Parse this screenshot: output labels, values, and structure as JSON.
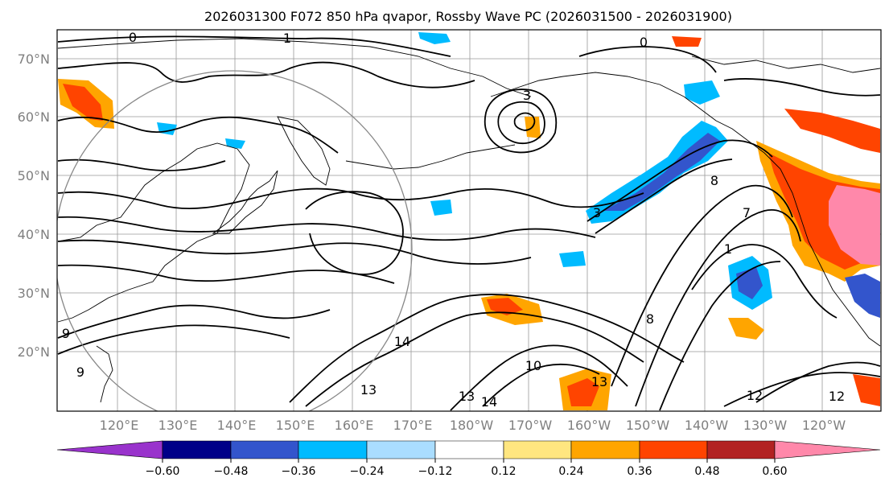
{
  "title": "2026031300 F072 850 hPa qvapor, Rossby Wave PC (2026031500 - 2026031900)",
  "latitude_labels": [
    "70°N",
    "60°N",
    "50°N",
    "40°N",
    "30°N",
    "20°N"
  ],
  "longitude_labels": [
    "120°E",
    "130°E",
    "140°E",
    "150°E",
    "160°E",
    "170°E",
    "180°W",
    "170°W",
    "160°W",
    "150°W",
    "140°W",
    "130°W",
    "120°W"
  ],
  "colorbar": {
    "colors": [
      "#9933cc",
      "#000088",
      "#3355cc",
      "#00bbff",
      "#aaddff",
      "#ffffff",
      "#ffe680",
      "#ffa500",
      "#ff4400",
      "#b22222",
      "#ff88aa"
    ],
    "tick_labels": [
      "−0.60",
      "−0.48",
      "−0.36",
      "−0.24",
      "−0.12",
      "0.12",
      "0.24",
      "0.36",
      "0.48",
      "0.60"
    ]
  },
  "contour_labels": [
    "0",
    "1",
    "0",
    "3",
    "8",
    "1",
    "7",
    "3",
    "8",
    "13",
    "14",
    "10",
    "13",
    "14",
    "13",
    "12",
    "12",
    "9",
    "9"
  ],
  "gridlines": true,
  "projection": "cylindrical lat-lon"
}
